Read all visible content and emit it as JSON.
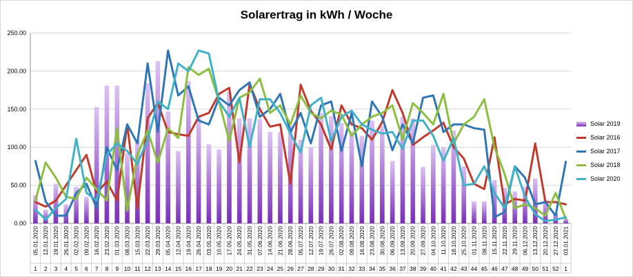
{
  "chart_data": {
    "type": "bar",
    "title": "Solarertrag in kWh / Woche",
    "ylim": [
      0,
      250
    ],
    "yticks": [
      "0.00",
      "50.00",
      "100.00",
      "150.00",
      "200.00",
      "250.00"
    ],
    "grid": true,
    "legend_position": "right",
    "dates": [
      "05.01.2020",
      "12.01.2020",
      "19.01.2020",
      "26.01.2020",
      "02.02.2020",
      "09.02.2020",
      "16.02.2020",
      "23.02.2020",
      "01.03.2020",
      "08.03.2020",
      "15.03.2020",
      "22.03.2020",
      "29.03.2020",
      "05.04.2020",
      "12.04.2020",
      "19.04.2020",
      "26.04.2020",
      "03.05.2020",
      "10.05.2020",
      "17.05.2020",
      "24.05.2020",
      "31.05.2020",
      "07.06.2020",
      "14.06.2020",
      "21.06.2020",
      "28.06.2020",
      "05.07.2020",
      "12.07.2020",
      "19.07.2020",
      "26.07.2020",
      "02.08.2020",
      "09.08.2020",
      "16.08.2020",
      "23.08.2020",
      "30.08.2020",
      "06.09.2020",
      "13.09.2020",
      "20.09.2020",
      "27.09.2020",
      "04.10.2020",
      "11.10.2020",
      "18.10.2020",
      "25.10.2020",
      "01.11.2020",
      "08.11.2020",
      "15.11.2020",
      "22.11.2020",
      "29.11.2020",
      "06.12.2020",
      "13.12.2020",
      "20.12.2020",
      "27.12.2020",
      "03.01.2021"
    ],
    "weeks": [
      "1",
      "2",
      "3",
      "4",
      "5",
      "6",
      "7",
      "8",
      "9",
      "10",
      "11",
      "12",
      "13",
      "14",
      "15",
      "16",
      "17",
      "18",
      "19",
      "20",
      "21",
      "22",
      "23",
      "24",
      "25",
      "26",
      "27",
      "28",
      "29",
      "30",
      "31",
      "32",
      "33",
      "34",
      "35",
      "36",
      "37",
      "38",
      "39",
      "40",
      "41",
      "42",
      "43",
      "44",
      "45",
      "46",
      "47",
      "48",
      "49",
      "50",
      "51",
      "52",
      "1"
    ],
    "series": [
      {
        "name": "Solar 2019",
        "kind": "bar",
        "color": "#9b59d0",
        "values": [
          37,
          18,
          52,
          25,
          48,
          35,
          153,
          181,
          181,
          92,
          110,
          184,
          213,
          147,
          95,
          187,
          140,
          104,
          97,
          173,
          138,
          138,
          137,
          120,
          120,
          128,
          110,
          100,
          145,
          141,
          132,
          121,
          115,
          135,
          128,
          82,
          140,
          138,
          74,
          103,
          100,
          122,
          75,
          29,
          29,
          57,
          47,
          42,
          48,
          59,
          31,
          14,
          6
        ]
      },
      {
        "name": "Solar 2016",
        "kind": "line",
        "color": "#c0392b",
        "values": [
          28,
          22,
          30,
          50,
          70,
          90,
          40,
          55,
          30,
          130,
          20,
          138,
          158,
          120,
          117,
          115,
          140,
          145,
          170,
          178,
          80,
          183,
          150,
          127,
          130,
          52,
          182,
          148,
          130,
          97,
          155,
          130,
          125,
          110,
          133,
          175,
          145,
          103,
          113,
          122,
          132,
          100,
          85,
          52,
          45,
          113,
          25,
          32,
          30,
          105,
          28,
          28,
          25
        ]
      },
      {
        "name": "Solar 2017",
        "kind": "line",
        "color": "#2e75b6",
        "values": [
          82,
          29,
          10,
          10,
          40,
          52,
          20,
          100,
          70,
          130,
          105,
          210,
          120,
          227,
          168,
          180,
          135,
          130,
          165,
          155,
          175,
          185,
          140,
          150,
          170,
          120,
          145,
          105,
          155,
          160,
          95,
          145,
          75,
          160,
          140,
          96,
          130,
          105,
          165,
          168,
          120,
          130,
          130,
          125,
          123,
          8,
          15,
          75,
          60,
          25,
          28,
          10,
          81
        ]
      },
      {
        "name": "Solar 2018",
        "kind": "line",
        "color": "#8cbf3f",
        "values": [
          30,
          80,
          60,
          35,
          32,
          60,
          45,
          30,
          125,
          17,
          90,
          122,
          80,
          125,
          112,
          205,
          195,
          203,
          160,
          108,
          165,
          172,
          190,
          145,
          155,
          130,
          168,
          145,
          138,
          148,
          143,
          115,
          130,
          140,
          145,
          155,
          110,
          158,
          145,
          130,
          170,
          105,
          130,
          140,
          163,
          100,
          65,
          20,
          25,
          20,
          10,
          40,
          6
        ]
      },
      {
        "name": "Solar 2020",
        "kind": "line",
        "color": "#3fb1c8",
        "values": [
          18,
          5,
          20,
          32,
          111,
          40,
          30,
          90,
          105,
          95,
          78,
          110,
          160,
          150,
          210,
          200,
          227,
          223,
          160,
          140,
          165,
          100,
          163,
          163,
          145,
          118,
          93,
          155,
          165,
          108,
          140,
          148,
          130,
          123,
          118,
          120,
          98,
          135,
          135,
          115,
          82,
          112,
          50,
          52,
          75,
          40,
          20,
          75,
          35,
          12,
          3,
          5,
          8
        ]
      }
    ]
  }
}
